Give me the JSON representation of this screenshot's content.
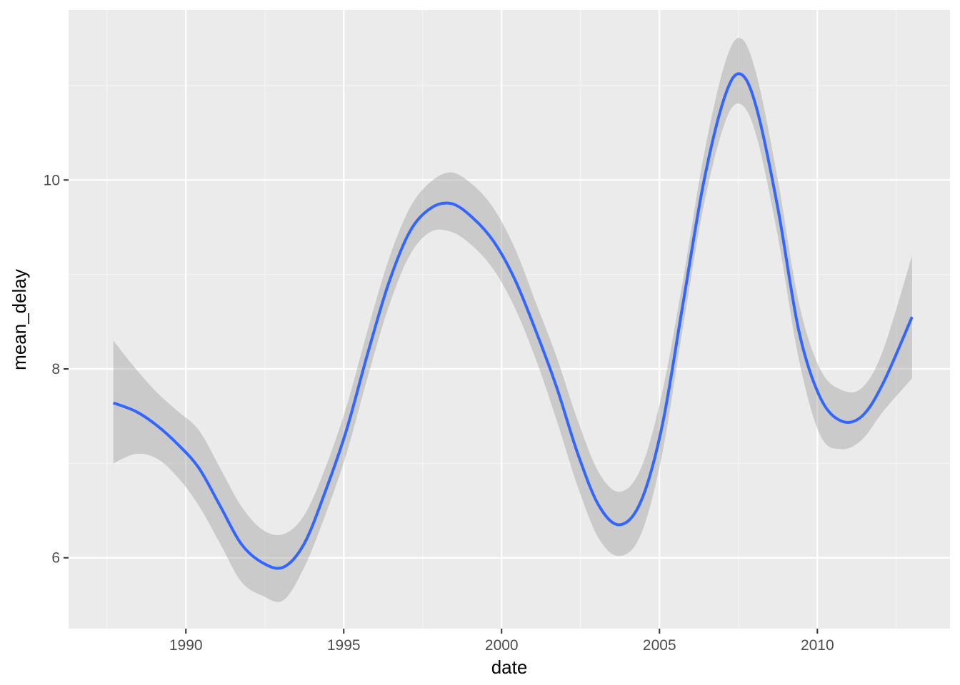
{
  "chart_data": {
    "type": "line",
    "xlabel": "date",
    "ylabel": "mean_delay",
    "x_axis_type": "date",
    "xlim": [
      "1986-04-15",
      "2014-03-15"
    ],
    "ylim": [
      5.25,
      11.8
    ],
    "x_ticks": [
      "1990",
      "1995",
      "2000",
      "2005",
      "2010"
    ],
    "y_ticks": [
      "6",
      "8",
      "10"
    ],
    "grid": true,
    "legend": "none",
    "colors": {
      "panel_background": "#ebebeb",
      "grid_major": "#ffffff",
      "grid_minor": "#f5f5f5",
      "line": "#3366ff",
      "ribbon": "#999999"
    },
    "series": [
      {
        "x": [
          "1987-09-15",
          "1988-06-01",
          "1989-02-01",
          "1989-10-01",
          "1990-06-01",
          "1991-02-01",
          "1991-10-01",
          "1992-06-01",
          "1993-02-01",
          "1993-10-01",
          "1994-06-01",
          "1995-02-01",
          "1995-10-01",
          "1996-06-01",
          "1997-02-01",
          "1997-10-01",
          "1998-06-01",
          "1999-02-01",
          "1999-10-01",
          "2000-06-01",
          "2001-02-01",
          "2001-10-01",
          "2002-06-01",
          "2003-02-01",
          "2003-10-01",
          "2004-06-01",
          "2005-02-01",
          "2005-10-01",
          "2006-06-01",
          "2007-02-01",
          "2007-08-01",
          "2008-02-01",
          "2008-10-01",
          "2009-06-01",
          "2010-02-01",
          "2010-10-01",
          "2011-06-01",
          "2012-02-01",
          "2012-12-31"
        ],
        "y": [
          7.64,
          7.55,
          7.4,
          7.2,
          6.95,
          6.55,
          6.15,
          5.95,
          5.9,
          6.15,
          6.7,
          7.35,
          8.15,
          8.9,
          9.45,
          9.7,
          9.75,
          9.6,
          9.35,
          8.95,
          8.4,
          7.8,
          7.1,
          6.55,
          6.35,
          6.6,
          7.4,
          8.7,
          10.0,
          10.9,
          11.12,
          10.75,
          9.7,
          8.4,
          7.7,
          7.45,
          7.5,
          7.85,
          8.55
        ],
        "ymin": [
          7.0,
          7.1,
          7.05,
          6.85,
          6.55,
          6.15,
          5.75,
          5.6,
          5.55,
          5.9,
          6.45,
          7.1,
          7.9,
          8.65,
          9.2,
          9.45,
          9.45,
          9.3,
          9.05,
          8.65,
          8.1,
          7.45,
          6.75,
          6.2,
          6.02,
          6.25,
          7.1,
          8.45,
          9.75,
          10.62,
          10.8,
          10.45,
          9.4,
          8.1,
          7.3,
          7.15,
          7.25,
          7.55,
          7.9
        ],
        "ymax": [
          8.3,
          8.0,
          7.75,
          7.55,
          7.35,
          6.95,
          6.55,
          6.3,
          6.25,
          6.45,
          6.95,
          7.6,
          8.4,
          9.15,
          9.7,
          9.98,
          10.08,
          9.95,
          9.7,
          9.28,
          8.7,
          8.12,
          7.45,
          6.9,
          6.7,
          6.95,
          7.75,
          8.95,
          10.28,
          11.25,
          11.5,
          11.1,
          10.0,
          8.7,
          8.0,
          7.78,
          7.8,
          8.2,
          9.2
        ]
      }
    ]
  }
}
